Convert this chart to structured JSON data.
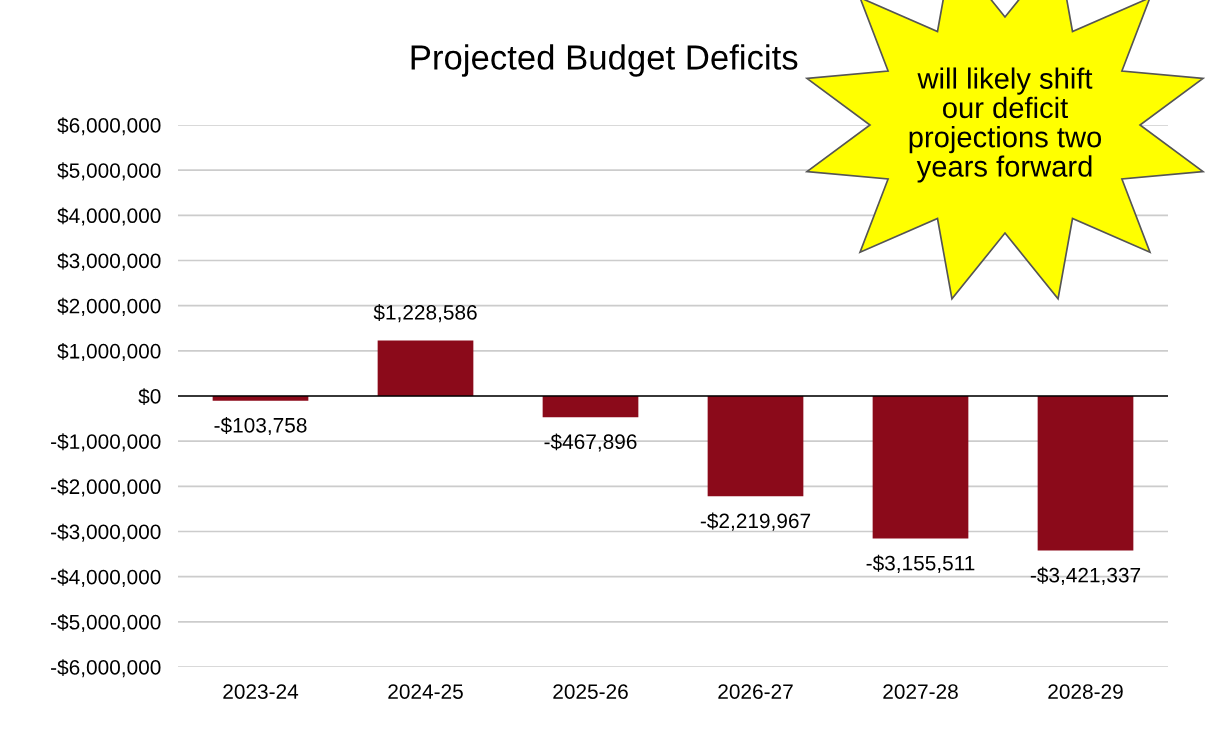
{
  "chart_data": {
    "type": "bar",
    "title": "Projected Budget Deficits",
    "categories": [
      "2023-24",
      "2024-25",
      "2025-26",
      "2026-27",
      "2027-28",
      "2028-29"
    ],
    "values": [
      -103758,
      1228586,
      -467896,
      -2219967,
      -3155511,
      -3421337
    ],
    "value_labels": [
      "-$103,758",
      "$1,228,586",
      "-$467,896",
      "-$2,219,967",
      "-$3,155,511",
      "-$3,421,337"
    ],
    "color": "#8b0a1a",
    "ylim": [
      -6000000,
      6000000
    ],
    "yticks": [
      {
        "value": -6000000,
        "label": "-$6,000,000"
      },
      {
        "value": -5000000,
        "label": "-$5,000,000"
      },
      {
        "value": -4000000,
        "label": "-$4,000,000"
      },
      {
        "value": -3000000,
        "label": "-$3,000,000"
      },
      {
        "value": -2000000,
        "label": "-$2,000,000"
      },
      {
        "value": -1000000,
        "label": "-$1,000,000"
      },
      {
        "value": 0,
        "label": "$0"
      },
      {
        "value": 1000000,
        "label": "$1,000,000"
      },
      {
        "value": 2000000,
        "label": "$2,000,000"
      },
      {
        "value": 3000000,
        "label": "$3,000,000"
      },
      {
        "value": 4000000,
        "label": "$4,000,000"
      },
      {
        "value": 5000000,
        "label": "$5,000,000"
      },
      {
        "value": 6000000,
        "label": "$6,000,000"
      }
    ],
    "grid": "y",
    "annotations": [
      "will likely shift\nour deficit\nprojections two\nyears forward"
    ]
  }
}
